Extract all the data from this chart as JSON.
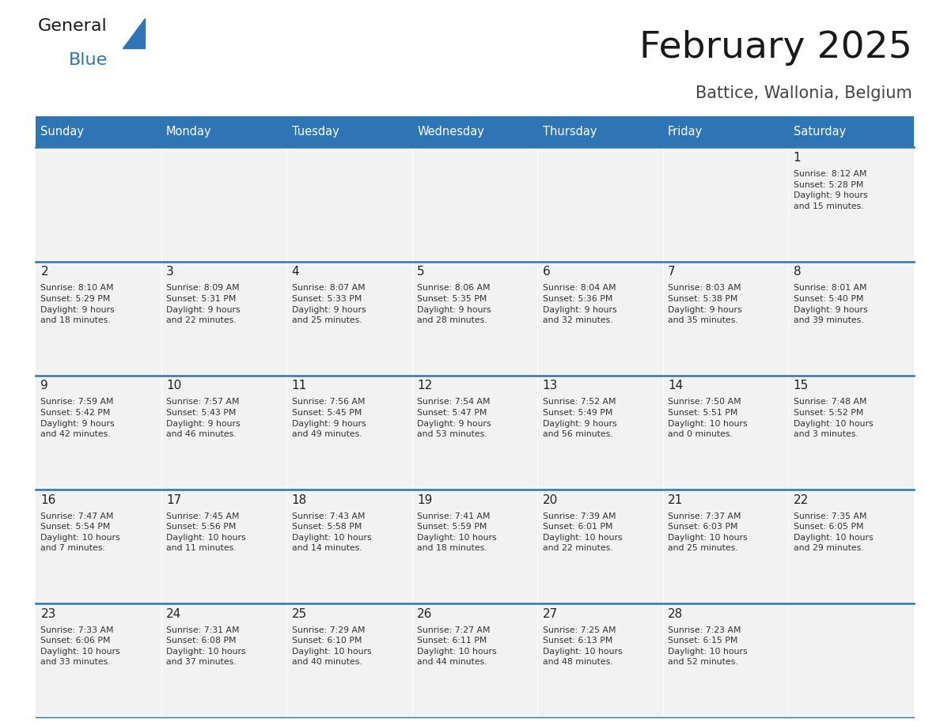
{
  "title": "February 2025",
  "subtitle": "Battice, Wallonia, Belgium",
  "header_bg": "#2e75b6",
  "header_text": "#ffffff",
  "cell_bg": "#f2f2f2",
  "day_number_color": "#222222",
  "info_text_color": "#333333",
  "line_color": "#2e75b6",
  "days_of_week": [
    "Sunday",
    "Monday",
    "Tuesday",
    "Wednesday",
    "Thursday",
    "Friday",
    "Saturday"
  ],
  "weeks": [
    [
      {
        "day": "",
        "info": ""
      },
      {
        "day": "",
        "info": ""
      },
      {
        "day": "",
        "info": ""
      },
      {
        "day": "",
        "info": ""
      },
      {
        "day": "",
        "info": ""
      },
      {
        "day": "",
        "info": ""
      },
      {
        "day": "1",
        "info": "Sunrise: 8:12 AM\nSunset: 5:28 PM\nDaylight: 9 hours\nand 15 minutes."
      }
    ],
    [
      {
        "day": "2",
        "info": "Sunrise: 8:10 AM\nSunset: 5:29 PM\nDaylight: 9 hours\nand 18 minutes."
      },
      {
        "day": "3",
        "info": "Sunrise: 8:09 AM\nSunset: 5:31 PM\nDaylight: 9 hours\nand 22 minutes."
      },
      {
        "day": "4",
        "info": "Sunrise: 8:07 AM\nSunset: 5:33 PM\nDaylight: 9 hours\nand 25 minutes."
      },
      {
        "day": "5",
        "info": "Sunrise: 8:06 AM\nSunset: 5:35 PM\nDaylight: 9 hours\nand 28 minutes."
      },
      {
        "day": "6",
        "info": "Sunrise: 8:04 AM\nSunset: 5:36 PM\nDaylight: 9 hours\nand 32 minutes."
      },
      {
        "day": "7",
        "info": "Sunrise: 8:03 AM\nSunset: 5:38 PM\nDaylight: 9 hours\nand 35 minutes."
      },
      {
        "day": "8",
        "info": "Sunrise: 8:01 AM\nSunset: 5:40 PM\nDaylight: 9 hours\nand 39 minutes."
      }
    ],
    [
      {
        "day": "9",
        "info": "Sunrise: 7:59 AM\nSunset: 5:42 PM\nDaylight: 9 hours\nand 42 minutes."
      },
      {
        "day": "10",
        "info": "Sunrise: 7:57 AM\nSunset: 5:43 PM\nDaylight: 9 hours\nand 46 minutes."
      },
      {
        "day": "11",
        "info": "Sunrise: 7:56 AM\nSunset: 5:45 PM\nDaylight: 9 hours\nand 49 minutes."
      },
      {
        "day": "12",
        "info": "Sunrise: 7:54 AM\nSunset: 5:47 PM\nDaylight: 9 hours\nand 53 minutes."
      },
      {
        "day": "13",
        "info": "Sunrise: 7:52 AM\nSunset: 5:49 PM\nDaylight: 9 hours\nand 56 minutes."
      },
      {
        "day": "14",
        "info": "Sunrise: 7:50 AM\nSunset: 5:51 PM\nDaylight: 10 hours\nand 0 minutes."
      },
      {
        "day": "15",
        "info": "Sunrise: 7:48 AM\nSunset: 5:52 PM\nDaylight: 10 hours\nand 3 minutes."
      }
    ],
    [
      {
        "day": "16",
        "info": "Sunrise: 7:47 AM\nSunset: 5:54 PM\nDaylight: 10 hours\nand 7 minutes."
      },
      {
        "day": "17",
        "info": "Sunrise: 7:45 AM\nSunset: 5:56 PM\nDaylight: 10 hours\nand 11 minutes."
      },
      {
        "day": "18",
        "info": "Sunrise: 7:43 AM\nSunset: 5:58 PM\nDaylight: 10 hours\nand 14 minutes."
      },
      {
        "day": "19",
        "info": "Sunrise: 7:41 AM\nSunset: 5:59 PM\nDaylight: 10 hours\nand 18 minutes."
      },
      {
        "day": "20",
        "info": "Sunrise: 7:39 AM\nSunset: 6:01 PM\nDaylight: 10 hours\nand 22 minutes."
      },
      {
        "day": "21",
        "info": "Sunrise: 7:37 AM\nSunset: 6:03 PM\nDaylight: 10 hours\nand 25 minutes."
      },
      {
        "day": "22",
        "info": "Sunrise: 7:35 AM\nSunset: 6:05 PM\nDaylight: 10 hours\nand 29 minutes."
      }
    ],
    [
      {
        "day": "23",
        "info": "Sunrise: 7:33 AM\nSunset: 6:06 PM\nDaylight: 10 hours\nand 33 minutes."
      },
      {
        "day": "24",
        "info": "Sunrise: 7:31 AM\nSunset: 6:08 PM\nDaylight: 10 hours\nand 37 minutes."
      },
      {
        "day": "25",
        "info": "Sunrise: 7:29 AM\nSunset: 6:10 PM\nDaylight: 10 hours\nand 40 minutes."
      },
      {
        "day": "26",
        "info": "Sunrise: 7:27 AM\nSunset: 6:11 PM\nDaylight: 10 hours\nand 44 minutes."
      },
      {
        "day": "27",
        "info": "Sunrise: 7:25 AM\nSunset: 6:13 PM\nDaylight: 10 hours\nand 48 minutes."
      },
      {
        "day": "28",
        "info": "Sunrise: 7:23 AM\nSunset: 6:15 PM\nDaylight: 10 hours\nand 52 minutes."
      },
      {
        "day": "",
        "info": ""
      }
    ]
  ],
  "logo_color_general": "#1a1a1a",
  "logo_color_blue": "#2e75b6",
  "logo_triangle_color": "#2e75b6",
  "fig_width": 11.88,
  "fig_height": 9.18,
  "dpi": 100
}
